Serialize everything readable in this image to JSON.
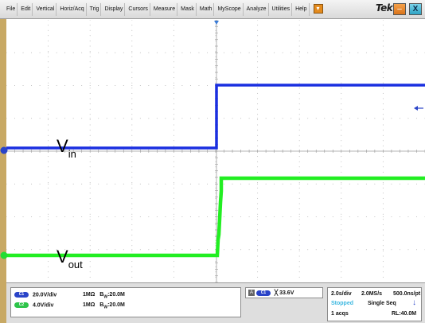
{
  "menu": {
    "items": [
      "File",
      "Edit",
      "Vertical",
      "Horiz/Acq",
      "Trig",
      "Display",
      "Cursors",
      "Measure",
      "Mask",
      "Math",
      "MyScope",
      "Analyze",
      "Utilities",
      "Help"
    ]
  },
  "brand": "Tek",
  "waveform": {
    "vin_label": "V",
    "vin_sub": "in",
    "vout_label": "V",
    "vout_sub": "out",
    "ch1_marker": "1",
    "ch2_marker": "2"
  },
  "channels": [
    {
      "badge": "C1",
      "scale": "20.0V/div",
      "coupling": "1MΩ",
      "bw_prefix": "B",
      "bw_sub": "W",
      "bw_value": ":20.0M",
      "color": "#2a44c8"
    },
    {
      "badge": "C2",
      "scale": "4.0V/div",
      "coupling": "1MΩ",
      "bw_prefix": "B",
      "bw_sub": "W",
      "bw_value": ":20.0M",
      "color": "#2ec44a"
    }
  ],
  "trigger": {
    "mode_icon": "A",
    "source": "C1",
    "slope_icon": "╳",
    "level": "33.6V"
  },
  "acquisition": {
    "time_div": "2.0s/div",
    "sample_rate": "2.0MS/s",
    "res": "500.0ns/pt",
    "status": "Stopped",
    "mode": "Single Seq",
    "acqs": "1 acqs",
    "record_length": "RL:40.0M"
  },
  "colors": {
    "ch1": "#1a2fe0",
    "ch2": "#22ee22",
    "accent": "#e38a1d"
  }
}
